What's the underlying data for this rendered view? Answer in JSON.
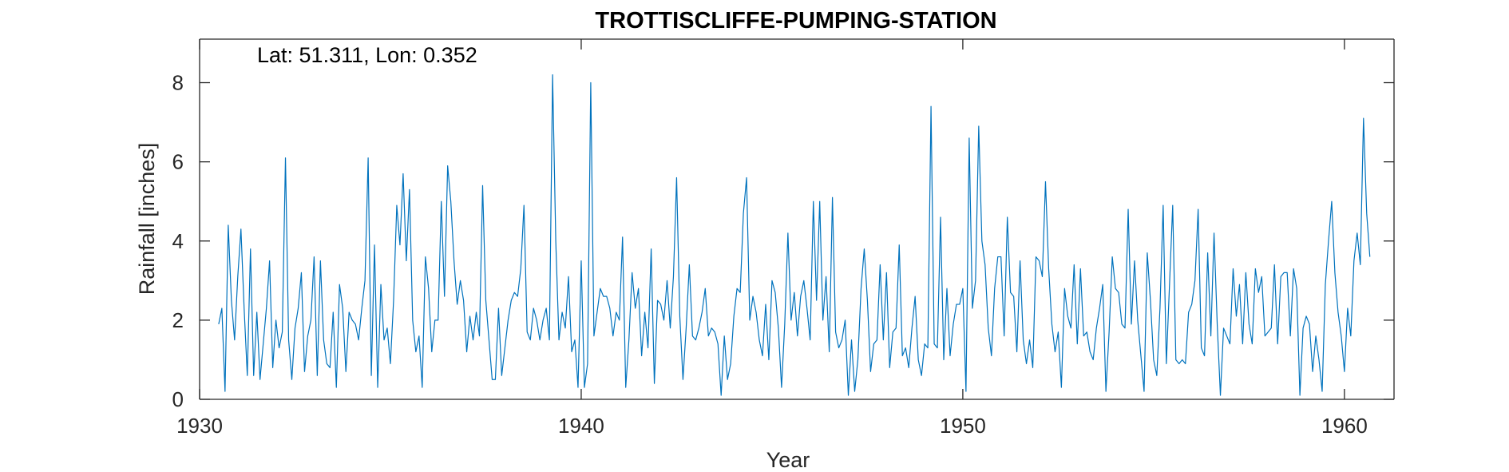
{
  "chart_data": {
    "type": "line",
    "title": "TROTTISCLIFFE-PUMPING-STATION",
    "annotation": "Lat: 51.311, Lon: 0.352",
    "xlabel": "Year",
    "ylabel": "Rainfall [inches]",
    "xlim": [
      1930,
      1961.3
    ],
    "ylim": [
      0,
      9.1
    ],
    "xticks": [
      1930,
      1940,
      1950,
      1960
    ],
    "yticks": [
      0,
      2,
      4,
      6,
      8
    ],
    "grid": false,
    "color": "#0072BD",
    "series": [
      {
        "start_year": 1930.5,
        "step_months": 1,
        "values": [
          1.9,
          2.3,
          0.2,
          4.4,
          2.5,
          1.5,
          3.1,
          4.3,
          2.3,
          0.6,
          3.8,
          0.6,
          2.2,
          0.5,
          1.4,
          2.3,
          3.5,
          0.8,
          2.0,
          1.3,
          1.7,
          6.1,
          1.5,
          0.5,
          1.8,
          2.3,
          3.2,
          0.7,
          1.6,
          2.0,
          3.6,
          0.6,
          3.5,
          1.5,
          0.9,
          0.8,
          2.2,
          0.3,
          2.9,
          2.3,
          0.7,
          2.2,
          2.0,
          1.9,
          1.5,
          2.3,
          3.0,
          6.1,
          0.6,
          3.9,
          0.3,
          2.9,
          1.5,
          1.8,
          0.9,
          2.5,
          4.9,
          3.9,
          5.7,
          3.5,
          5.3,
          2.0,
          1.2,
          1.6,
          0.3,
          3.6,
          2.8,
          1.2,
          2.0,
          2.0,
          5.0,
          2.6,
          5.9,
          5.0,
          3.5,
          2.4,
          3.0,
          2.5,
          1.2,
          2.1,
          1.5,
          2.2,
          1.6,
          5.4,
          2.5,
          1.5,
          0.5,
          0.5,
          2.3,
          0.6,
          1.3,
          2.0,
          2.5,
          2.7,
          2.6,
          3.3,
          4.9,
          1.7,
          1.5,
          2.3,
          2.0,
          1.5,
          2.0,
          2.3,
          1.5,
          8.2,
          4.0,
          1.5,
          2.2,
          1.8,
          3.1,
          1.2,
          1.5,
          0.3,
          3.5,
          0.3,
          0.9,
          8.0,
          1.6,
          2.2,
          2.8,
          2.6,
          2.6,
          2.3,
          1.6,
          2.2,
          2.0,
          4.1,
          0.3,
          1.5,
          3.2,
          2.3,
          2.8,
          1.1,
          2.2,
          1.3,
          3.8,
          0.4,
          2.5,
          2.4,
          2.0,
          3.0,
          1.8,
          3.1,
          5.6,
          2.1,
          0.5,
          1.8,
          3.4,
          1.6,
          1.5,
          1.8,
          2.2,
          2.8,
          1.6,
          1.8,
          1.7,
          1.4,
          0.1,
          1.6,
          0.5,
          0.9,
          2.1,
          2.8,
          2.7,
          4.7,
          5.6,
          2.0,
          2.6,
          2.2,
          1.5,
          1.1,
          2.4,
          1.0,
          3.0,
          2.7,
          1.8,
          0.3,
          1.9,
          4.2,
          2.0,
          2.7,
          1.6,
          2.6,
          3.0,
          2.3,
          1.5,
          5.0,
          2.5,
          5.0,
          2.0,
          3.1,
          1.2,
          5.1,
          1.7,
          1.3,
          1.5,
          2.0,
          0.1,
          1.5,
          0.2,
          1.0,
          2.8,
          3.8,
          2.5,
          0.7,
          1.4,
          1.5,
          3.4,
          1.5,
          3.2,
          0.8,
          1.7,
          1.8,
          3.9,
          1.1,
          1.3,
          0.8,
          1.8,
          2.6,
          1.0,
          0.6,
          1.4,
          1.3,
          7.4,
          1.4,
          1.3,
          4.6,
          1.0,
          2.8,
          1.1,
          1.9,
          2.4,
          2.4,
          2.8,
          0.2,
          6.6,
          2.3,
          3.0,
          6.9,
          4.0,
          3.4,
          1.8,
          1.1,
          2.8,
          3.6,
          3.6,
          1.6,
          4.6,
          2.7,
          2.6,
          1.2,
          3.5,
          1.5,
          0.9,
          1.5,
          0.8,
          3.6,
          3.5,
          3.1,
          5.5,
          3.3,
          1.9,
          1.2,
          1.7,
          0.3,
          2.8,
          2.1,
          1.8,
          3.4,
          1.4,
          3.3,
          1.6,
          1.7,
          1.2,
          1.0,
          1.8,
          2.3,
          2.9,
          0.2,
          1.7,
          3.6,
          2.8,
          2.7,
          1.9,
          1.8,
          4.8,
          1.9,
          3.5,
          2.0,
          1.1,
          0.2,
          3.7,
          2.5,
          1.0,
          0.6,
          2.3,
          4.9,
          0.9,
          2.9,
          4.9,
          1.0,
          0.9,
          1.0,
          0.9,
          2.2,
          2.4,
          3.0,
          4.8,
          1.3,
          1.1,
          3.7,
          1.6,
          4.2,
          1.9,
          0.1,
          1.8,
          1.6,
          1.4,
          3.3,
          2.1,
          2.9,
          1.4,
          3.2,
          1.9,
          1.4,
          3.3,
          2.7,
          3.1,
          1.6,
          1.7,
          1.8,
          3.4,
          1.4,
          3.1,
          3.2,
          3.2,
          1.6,
          3.3,
          2.8,
          0.1,
          1.8,
          2.1,
          1.9,
          0.7,
          1.6,
          1.0,
          0.2,
          2.9,
          4.0,
          5.0,
          3.2,
          2.2,
          1.6,
          0.7,
          2.3,
          1.6,
          3.5,
          4.2,
          3.4,
          7.1,
          4.7,
          3.6
        ]
      }
    ]
  }
}
